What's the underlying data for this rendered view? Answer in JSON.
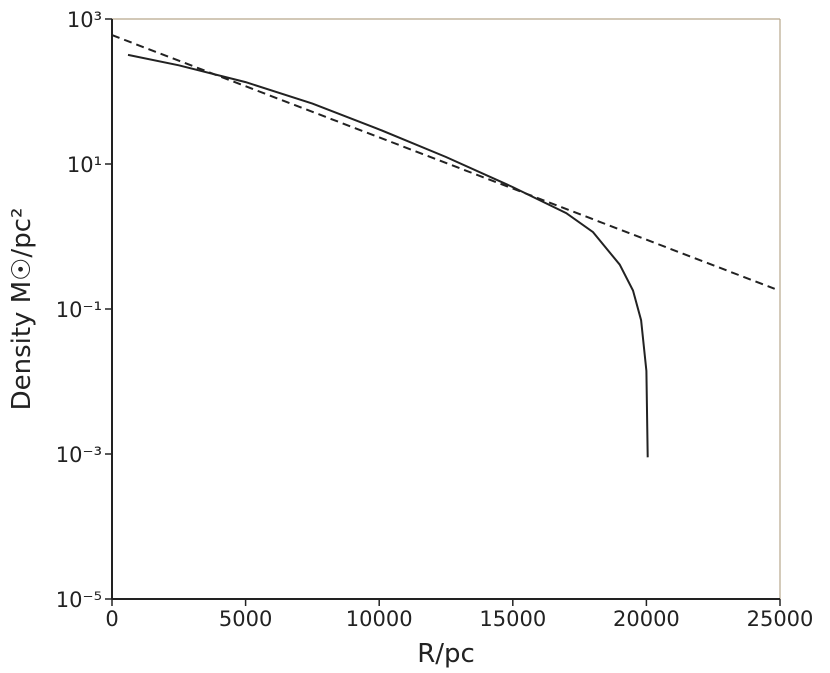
{
  "chart_data": {
    "type": "line",
    "xlabel": "R/pc",
    "ylabel": "Density M☉/pc²",
    "xlim": [
      0,
      25000
    ],
    "xticks": [
      0,
      5000,
      10000,
      15000,
      20000,
      25000
    ],
    "ylim": [
      1e-05,
      1000
    ],
    "ylog": true,
    "yticks": [
      {
        "value": 1000,
        "label": "10³"
      },
      {
        "value": 10,
        "label": "10¹"
      },
      {
        "value": 0.1,
        "label": "10⁻¹"
      },
      {
        "value": 0.001,
        "label": "10⁻³"
      },
      {
        "value": 1e-05,
        "label": "10⁻⁵"
      }
    ],
    "series": [
      {
        "color": "#222222",
        "dashed": false,
        "x": [
          600,
          2500,
          5000,
          7500,
          10000,
          12500,
          15000,
          17000,
          18000,
          19000,
          19500,
          19800,
          20000,
          20050
        ],
        "values": [
          320,
          230,
          135,
          68,
          30,
          12.5,
          4.8,
          2.1,
          1.15,
          0.41,
          0.18,
          0.07,
          0.014,
          0.0009
        ]
      },
      {
        "color": "#222222",
        "dashed": true,
        "x": [
          0,
          24800
        ],
        "values": [
          600,
          0.19
        ]
      }
    ],
    "spine_color": "#b8a88c"
  }
}
